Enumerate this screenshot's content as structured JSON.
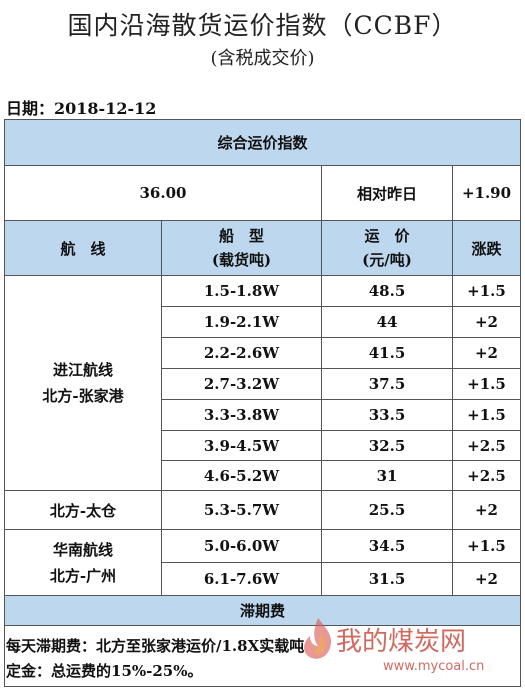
{
  "title": "国内沿海散货运价指数（CCBF）",
  "subtitle": "(含税成交价)",
  "date_label": "日期：",
  "date_value": "2018-12-12",
  "composite": {
    "header": "综合运价指数",
    "value": "36.00",
    "compare_label": "相对昨日",
    "change": "+1.90"
  },
  "columns": {
    "route": "航　线",
    "ship_type_line1": "船　型",
    "ship_type_line2": "(载货吨)",
    "price_line1": "运　价",
    "price_line2": "(元/吨)",
    "change": "涨跌"
  },
  "routes": [
    {
      "name_line1": "进江航线",
      "name_line2": "北方-张家港",
      "rows": [
        {
          "ship": "1.5-1.8W",
          "price": "48.5",
          "change": "+1.5"
        },
        {
          "ship": "1.9-2.1W",
          "price": "44",
          "change": "+2"
        },
        {
          "ship": "2.2-2.6W",
          "price": "41.5",
          "change": "+2"
        },
        {
          "ship": "2.7-3.2W",
          "price": "37.5",
          "change": "+1.5"
        },
        {
          "ship": "3.3-3.8W",
          "price": "33.5",
          "change": "+1.5"
        },
        {
          "ship": "3.9-4.5W",
          "price": "32.5",
          "change": "+2.5"
        },
        {
          "ship": "4.6-5.2W",
          "price": "31",
          "change": "+2.5"
        }
      ]
    },
    {
      "name_line1": "北方-太仓",
      "rows": [
        {
          "ship": "5.3-5.7W",
          "price": "25.5",
          "change": "+2"
        }
      ]
    },
    {
      "name_line1": "华南航线",
      "name_line2": "北方-广州",
      "rows": [
        {
          "ship": "5.0-6.0W",
          "price": "34.5",
          "change": "+1.5"
        },
        {
          "ship": "6.1-7.6W",
          "price": "31.5",
          "change": "+2"
        }
      ]
    }
  ],
  "demurrage": {
    "header": "滞期费",
    "line1": "每天滞期费：北方至张家港运价/1.8X实载吨",
    "line2": "定金：总运费的15%-25%。"
  },
  "watermark": {
    "text": "我的煤炭网",
    "url": "www.mycoal.cn",
    "icon": "flame-logo-icon",
    "color": "#c0392b"
  }
}
